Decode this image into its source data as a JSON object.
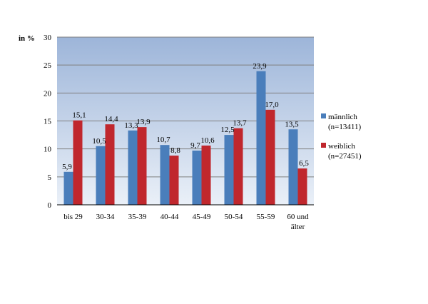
{
  "chart_data": {
    "type": "bar",
    "ylabel": "in %",
    "ylim": [
      0,
      30
    ],
    "yticks": [
      0,
      5,
      10,
      15,
      20,
      25,
      30
    ],
    "grid": true,
    "legend_position": "right",
    "categories": [
      [
        "bis 29"
      ],
      [
        "30-34"
      ],
      [
        "35-39"
      ],
      [
        "40-44"
      ],
      [
        "45-49"
      ],
      [
        "50-54"
      ],
      [
        "55-59"
      ],
      [
        "60 und",
        "älter"
      ]
    ],
    "series": [
      {
        "name": [
          "männlich",
          "(n=13411)"
        ],
        "color": "#4A7EBB",
        "values": [
          5.9,
          10.5,
          13.3,
          10.7,
          9.7,
          12.5,
          23.9,
          13.5
        ],
        "labels": [
          "5,9",
          "10,5",
          "13,3",
          "10,7",
          "9,7",
          "12,5",
          "23,9",
          "13,5"
        ]
      },
      {
        "name": [
          "weiblich",
          "(n=27451)"
        ],
        "color": "#C0272D",
        "values": [
          15.1,
          14.4,
          13.9,
          8.8,
          10.6,
          13.7,
          17.0,
          6.5
        ],
        "labels": [
          "15,1",
          "14,4",
          "13,9",
          "8,8",
          "10,6",
          "13,7",
          "17,0",
          "6,5"
        ]
      }
    ],
    "plot_background": [
      "#9DB5D9",
      "#EAF0F8"
    ]
  }
}
